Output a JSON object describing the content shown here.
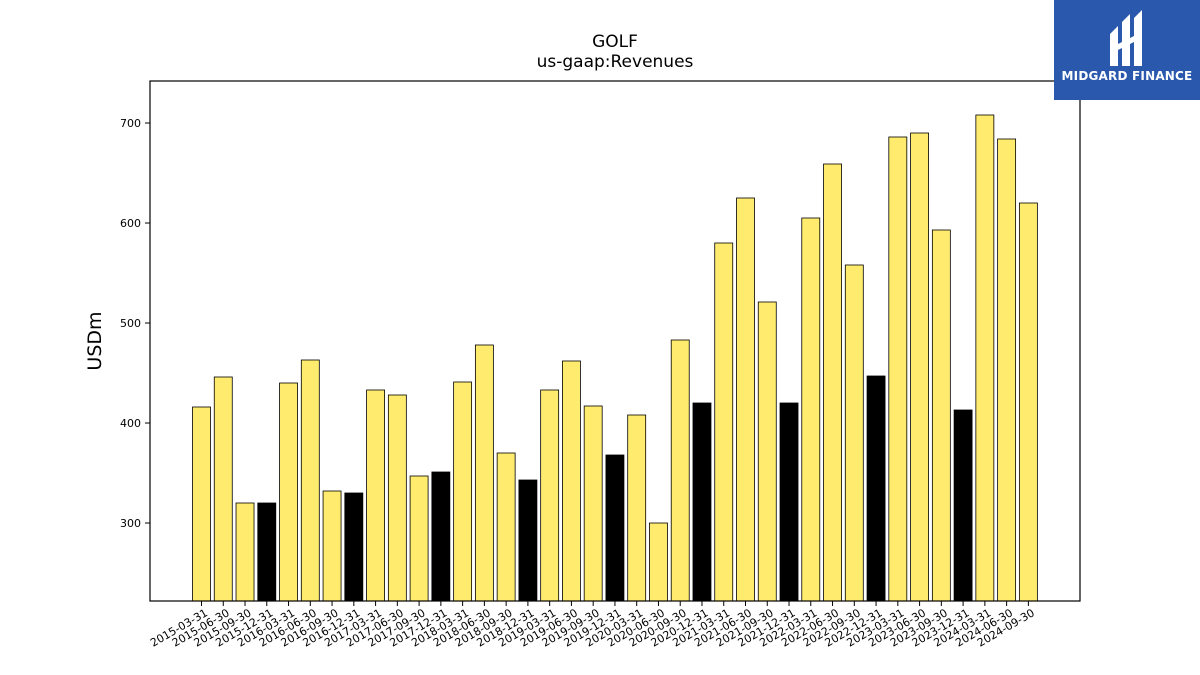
{
  "brand": {
    "name": "MIDGARD FINANCE",
    "bg_color": "#2a58ad"
  },
  "chart_data": {
    "type": "bar",
    "title": "GOLF",
    "subtitle": "us-gaap:Revenues",
    "xlabel": "",
    "ylabel": "USDm",
    "ylim": [
      222,
      742
    ],
    "yticks": [
      300,
      400,
      500,
      600,
      700
    ],
    "grid": false,
    "colors": {
      "default": "#ffec6e",
      "highlight": "#000000",
      "edge": "#000000"
    },
    "categories": [
      "2015-03-31",
      "2015-06-30",
      "2015-09-30",
      "2015-12-31",
      "2016-03-31",
      "2016-06-30",
      "2016-09-30",
      "2016-12-31",
      "2017-03-31",
      "2017-06-30",
      "2017-09-30",
      "2017-12-31",
      "2018-03-31",
      "2018-06-30",
      "2018-09-30",
      "2018-12-31",
      "2019-03-31",
      "2019-06-30",
      "2019-09-30",
      "2019-12-31",
      "2020-03-31",
      "2020-06-30",
      "2020-09-30",
      "2020-12-31",
      "2021-03-31",
      "2021-06-30",
      "2021-09-30",
      "2021-12-31",
      "2022-03-31",
      "2022-06-30",
      "2022-09-30",
      "2022-12-31",
      "2023-03-31",
      "2023-06-30",
      "2023-09-30",
      "2023-12-31",
      "2024-03-31",
      "2024-06-30",
      "2024-09-30"
    ],
    "values": [
      416,
      446,
      320,
      320,
      440,
      463,
      332,
      330,
      433,
      428,
      347,
      351,
      441,
      478,
      370,
      343,
      433,
      462,
      417,
      368,
      408,
      300,
      483,
      420,
      580,
      625,
      521,
      420,
      605,
      659,
      558,
      447,
      686,
      690,
      593,
      413,
      708,
      684,
      620
    ],
    "highlighted": [
      false,
      false,
      false,
      true,
      false,
      false,
      false,
      true,
      false,
      false,
      false,
      true,
      false,
      false,
      false,
      true,
      false,
      false,
      false,
      true,
      false,
      false,
      false,
      true,
      false,
      false,
      false,
      true,
      false,
      false,
      false,
      true,
      false,
      false,
      false,
      true,
      false,
      false,
      false
    ]
  }
}
